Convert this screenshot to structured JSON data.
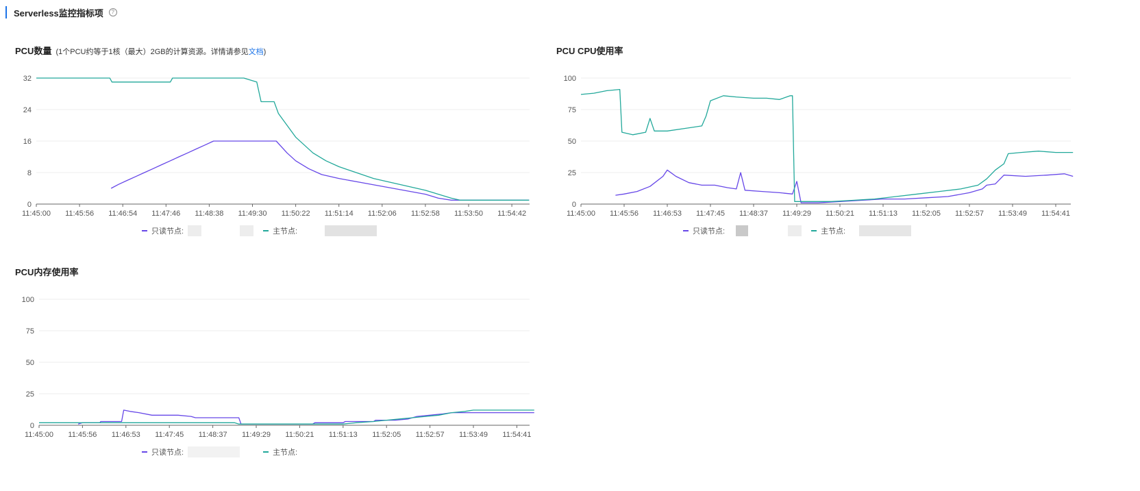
{
  "header": {
    "title": "Serverless监控指标项",
    "help_icon": "question-circle-icon"
  },
  "panels": {
    "pcu_count": {
      "title": "PCU数量",
      "note_prefix": "(1个PCU约等于1核（最大）2GB的计算资源。详情请参见",
      "note_link": "文档",
      "note_suffix": ")"
    },
    "pcu_cpu": {
      "title": "PCU CPU使用率"
    },
    "pcu_mem": {
      "title": "PCU内存使用率"
    }
  },
  "legend": {
    "readonly_label": "只读节点:",
    "primary_label": "主节点:"
  },
  "colors": {
    "readonly": "#6647e8",
    "primary": "#21a89a",
    "grid": "#ececec",
    "link": "#1a73e8"
  },
  "chart_data": [
    {
      "type": "line",
      "title": "PCU数量",
      "x": [
        "11:45:00",
        "11:45:56",
        "11:46:54",
        "11:47:46",
        "11:48:38",
        "11:49:30",
        "11:50:22",
        "11:51:14",
        "11:52:06",
        "11:52:58",
        "11:53:50",
        "11:54:42"
      ],
      "yticks": [
        0,
        8,
        16,
        24,
        32
      ],
      "ylim": [
        0,
        32
      ],
      "series": [
        {
          "name": "只读节点",
          "color": "#6647e8",
          "points": [
            [
              1.73,
              4
            ],
            [
              1.9,
              5
            ],
            [
              2.1,
              6
            ],
            [
              2.3,
              7
            ],
            [
              2.5,
              8
            ],
            [
              2.7,
              9
            ],
            [
              2.9,
              10
            ],
            [
              3.1,
              11
            ],
            [
              3.3,
              12
            ],
            [
              3.5,
              13
            ],
            [
              3.7,
              14
            ],
            [
              3.9,
              15
            ],
            [
              4.1,
              16
            ],
            [
              4.5,
              16
            ],
            [
              5.0,
              16
            ],
            [
              5.55,
              16
            ],
            [
              5.8,
              13
            ],
            [
              6.0,
              11
            ],
            [
              6.3,
              9
            ],
            [
              6.6,
              7.5
            ],
            [
              7.0,
              6.5
            ],
            [
              7.5,
              5.5
            ],
            [
              8.0,
              4.5
            ],
            [
              8.5,
              3.5
            ],
            [
              9.0,
              2.5
            ],
            [
              9.3,
              1.5
            ],
            [
              9.6,
              1
            ],
            [
              10.5,
              1
            ],
            [
              11.4,
              1
            ]
          ]
        },
        {
          "name": "主节点",
          "color": "#21a89a",
          "points": [
            [
              0,
              32
            ],
            [
              1.7,
              32
            ],
            [
              1.75,
              31
            ],
            [
              3.1,
              31
            ],
            [
              3.15,
              32
            ],
            [
              4.8,
              32
            ],
            [
              5.1,
              31
            ],
            [
              5.2,
              26
            ],
            [
              5.5,
              26
            ],
            [
              5.6,
              23
            ],
            [
              5.8,
              20
            ],
            [
              6.0,
              17
            ],
            [
              6.2,
              15
            ],
            [
              6.4,
              13
            ],
            [
              6.7,
              11
            ],
            [
              7.0,
              9.5
            ],
            [
              7.4,
              8
            ],
            [
              7.8,
              6.5
            ],
            [
              8.2,
              5.5
            ],
            [
              8.6,
              4.5
            ],
            [
              9.0,
              3.5
            ],
            [
              9.3,
              2.5
            ],
            [
              9.6,
              1.5
            ],
            [
              9.8,
              1
            ],
            [
              10.5,
              1
            ],
            [
              11.4,
              1
            ]
          ]
        }
      ]
    },
    {
      "type": "line",
      "title": "PCU CPU使用率",
      "x": [
        "11:45:00",
        "11:45:56",
        "11:46:53",
        "11:47:45",
        "11:48:37",
        "11:49:29",
        "11:50:21",
        "11:51:13",
        "11:52:05",
        "11:52:57",
        "11:53:49",
        "11:54:41"
      ],
      "yticks": [
        0,
        25,
        50,
        75,
        100
      ],
      "ylim": [
        0,
        100
      ],
      "series": [
        {
          "name": "只读节点",
          "color": "#6647e8",
          "points": [
            [
              0.8,
              7
            ],
            [
              1.0,
              8
            ],
            [
              1.3,
              10
            ],
            [
              1.6,
              14
            ],
            [
              1.9,
              22
            ],
            [
              2.0,
              27
            ],
            [
              2.2,
              22
            ],
            [
              2.5,
              17
            ],
            [
              2.8,
              15
            ],
            [
              3.1,
              15
            ],
            [
              3.4,
              13
            ],
            [
              3.6,
              12
            ],
            [
              3.7,
              25
            ],
            [
              3.8,
              11
            ],
            [
              4.2,
              10
            ],
            [
              4.6,
              9
            ],
            [
              4.9,
              8
            ],
            [
              5.0,
              18
            ],
            [
              5.1,
              1
            ],
            [
              5.5,
              1
            ],
            [
              6.0,
              2
            ],
            [
              6.5,
              3
            ],
            [
              7.0,
              4
            ],
            [
              7.5,
              4
            ],
            [
              8.0,
              5
            ],
            [
              8.5,
              6
            ],
            [
              9.0,
              9
            ],
            [
              9.3,
              12
            ],
            [
              9.4,
              15
            ],
            [
              9.6,
              16
            ],
            [
              9.8,
              23
            ],
            [
              10.3,
              22
            ],
            [
              10.8,
              23
            ],
            [
              11.2,
              24
            ],
            [
              11.4,
              22
            ]
          ]
        },
        {
          "name": "主节点",
          "color": "#21a89a",
          "points": [
            [
              0,
              87
            ],
            [
              0.3,
              88
            ],
            [
              0.6,
              90
            ],
            [
              0.9,
              91
            ],
            [
              0.95,
              57
            ],
            [
              1.2,
              55
            ],
            [
              1.5,
              57
            ],
            [
              1.6,
              68
            ],
            [
              1.7,
              58
            ],
            [
              2.0,
              58
            ],
            [
              2.4,
              60
            ],
            [
              2.8,
              62
            ],
            [
              2.9,
              70
            ],
            [
              3.0,
              82
            ],
            [
              3.3,
              86
            ],
            [
              3.6,
              85
            ],
            [
              4.0,
              84
            ],
            [
              4.3,
              84
            ],
            [
              4.6,
              83
            ],
            [
              4.85,
              86
            ],
            [
              4.9,
              86
            ],
            [
              4.95,
              2
            ],
            [
              5.3,
              2
            ],
            [
              5.8,
              2
            ],
            [
              6.3,
              3
            ],
            [
              6.8,
              4
            ],
            [
              7.3,
              6
            ],
            [
              7.8,
              8
            ],
            [
              8.3,
              10
            ],
            [
              8.8,
              12
            ],
            [
              9.2,
              15
            ],
            [
              9.4,
              20
            ],
            [
              9.6,
              27
            ],
            [
              9.8,
              32
            ],
            [
              9.9,
              40
            ],
            [
              10.2,
              41
            ],
            [
              10.6,
              42
            ],
            [
              11.0,
              41
            ],
            [
              11.4,
              41
            ]
          ]
        }
      ]
    },
    {
      "type": "line",
      "title": "PCU内存使用率",
      "x": [
        "11:45:00",
        "11:45:56",
        "11:46:53",
        "11:47:45",
        "11:48:37",
        "11:49:29",
        "11:50:21",
        "11:51:13",
        "11:52:05",
        "11:52:57",
        "11:53:49",
        "11:54:41"
      ],
      "yticks": [
        0,
        25,
        50,
        75,
        100
      ],
      "ylim": [
        0,
        100
      ],
      "series": [
        {
          "name": "只读节点",
          "color": "#6647e8",
          "points": [
            [
              0.9,
              1
            ],
            [
              1.0,
              2
            ],
            [
              1.4,
              2
            ],
            [
              1.42,
              3
            ],
            [
              1.9,
              3
            ],
            [
              1.95,
              12
            ],
            [
              2.1,
              11
            ],
            [
              2.3,
              10
            ],
            [
              2.6,
              8
            ],
            [
              3.2,
              8
            ],
            [
              3.5,
              7
            ],
            [
              3.6,
              6
            ],
            [
              4.6,
              6
            ],
            [
              4.65,
              1
            ],
            [
              5.5,
              1
            ],
            [
              6.3,
              1
            ],
            [
              6.35,
              2
            ],
            [
              7.0,
              2
            ],
            [
              7.05,
              3
            ],
            [
              7.7,
              3
            ],
            [
              7.75,
              4
            ],
            [
              8.2,
              4
            ],
            [
              8.5,
              5
            ],
            [
              8.7,
              7
            ],
            [
              9.0,
              8
            ],
            [
              9.3,
              9
            ],
            [
              9.5,
              10
            ],
            [
              10.0,
              10
            ],
            [
              11.4,
              10
            ]
          ]
        },
        {
          "name": "主节点",
          "color": "#21a89a",
          "points": [
            [
              0,
              2
            ],
            [
              3.5,
              2
            ],
            [
              4.5,
              2
            ],
            [
              4.6,
              1
            ],
            [
              7.0,
              1
            ],
            [
              7.3,
              2
            ],
            [
              7.7,
              3
            ],
            [
              8.0,
              4
            ],
            [
              8.3,
              5
            ],
            [
              8.6,
              6
            ],
            [
              8.9,
              7
            ],
            [
              9.2,
              8
            ],
            [
              9.5,
              10
            ],
            [
              9.8,
              11
            ],
            [
              10.0,
              12
            ],
            [
              10.6,
              12
            ],
            [
              11.4,
              12
            ]
          ]
        }
      ]
    }
  ]
}
